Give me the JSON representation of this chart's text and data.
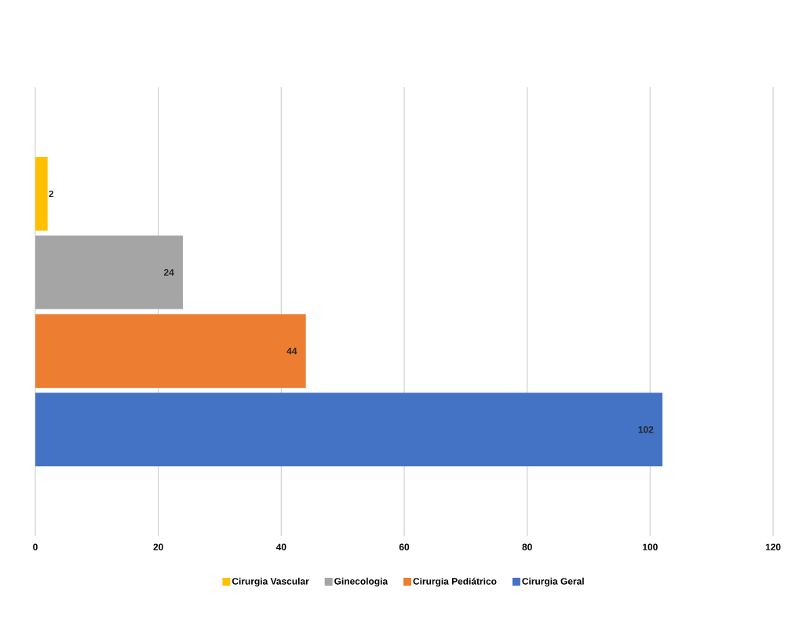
{
  "chart_data": {
    "type": "bar",
    "orientation": "horizontal",
    "categories": [
      null
    ],
    "series": [
      {
        "name": "Cirurgia Vascular",
        "color": "#ffc000",
        "values": [
          2
        ]
      },
      {
        "name": "Ginecologia",
        "color": "#a5a5a5",
        "values": [
          24
        ]
      },
      {
        "name": "Cirurgia Pediátrico",
        "color": "#ed7d31",
        "values": [
          44
        ]
      },
      {
        "name": "Cirurgia Geral",
        "color": "#4472c4",
        "values": [
          102
        ]
      }
    ],
    "xlim": [
      0,
      120
    ],
    "xticks": [
      0,
      20,
      40,
      60,
      80,
      100,
      120
    ],
    "grid": "x",
    "legend": "bottom",
    "data_labels": true
  }
}
